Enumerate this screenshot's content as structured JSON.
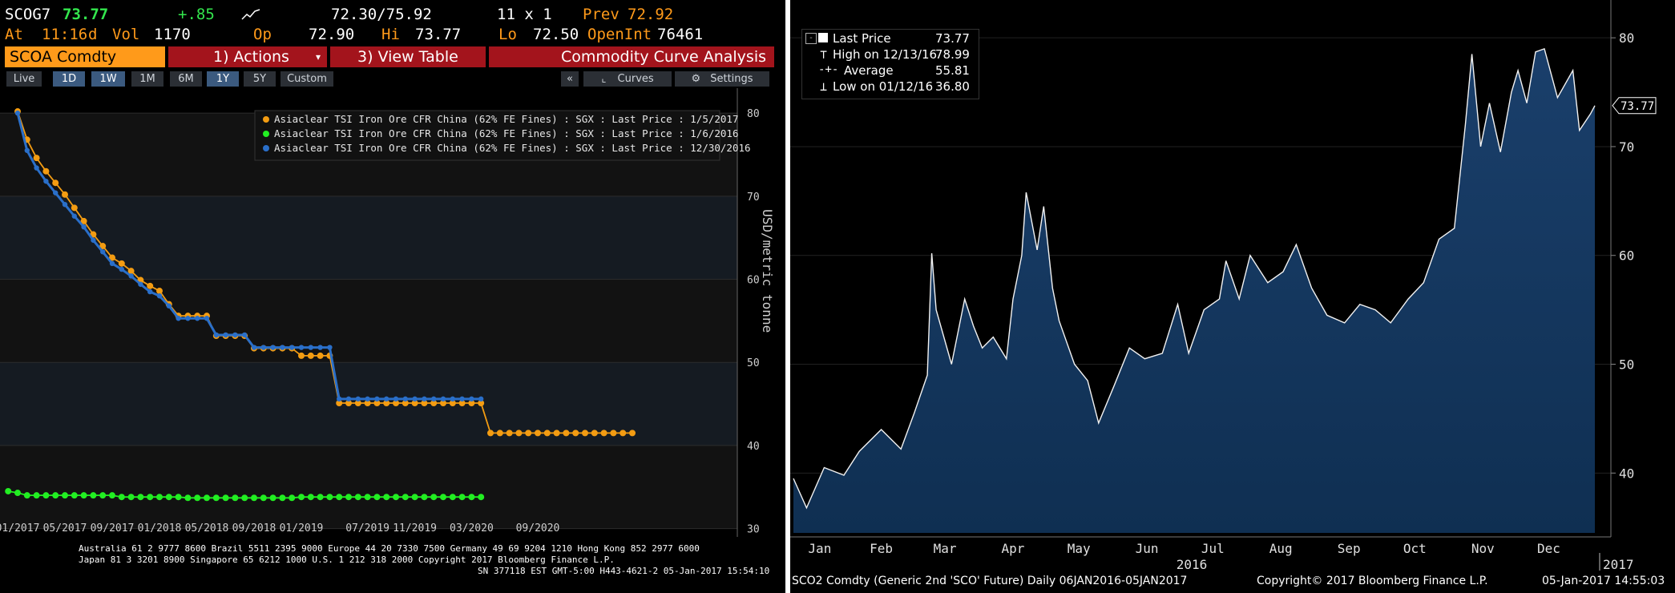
{
  "left": {
    "ticker": "SCOG7",
    "last": "73.77",
    "change": "+.85",
    "range": "72.30/75.92",
    "size": "11 x 1",
    "prev_label": "Prev",
    "prev": "72.92",
    "at_label": "At",
    "time": "11:16",
    "day_flag": "d",
    "vol_label": "Vol",
    "vol": "1170",
    "op_label": "Op",
    "op": "72.90",
    "hi_label": "Hi",
    "hi": "73.77",
    "lo_label": "Lo",
    "lo": "72.50",
    "oi_label": "OpenInt",
    "oi": "76461",
    "security": "SCOA Comdty",
    "actions": "1) Actions",
    "view_table": "3) View Table",
    "analysis_title": "Commodity Curve Analysis",
    "periods": [
      "Live",
      "1D",
      "1W",
      "1M",
      "6M",
      "1Y",
      "5Y",
      "Custom"
    ],
    "collapse": "«",
    "curves": "Curves",
    "settings": "Settings",
    "footer": [
      "Australia 61 2 9777 8600 Brazil 5511 2395 9000 Europe 44 20 7330 7500 Germany 49 69 9204 1210 Hong Kong 852 2977 6000",
      "Japan 81 3 3201 8900          Singapore 65 6212 1000          U.S. 1 212 318 2000          Copyright 2017 Bloomberg Finance L.P.",
      "SN 377118 EST  GMT-5:00 H443-4621-2 05-Jan-2017 15:54:10"
    ]
  },
  "right": {
    "footer_left": "SCO2 Comdty (Generic 2nd 'SCO' Future)  Daily 06JAN2016-05JAN2017",
    "footer_mid": "Copyright© 2017 Bloomberg Finance L.P.",
    "footer_right": "05-Jan-2017 14:55:03"
  },
  "chart_data": [
    {
      "type": "line",
      "ylabel": "USD/metric tonne",
      "ylim": [
        29,
        83
      ],
      "yticks": [
        30,
        40,
        50,
        60,
        70,
        80
      ],
      "x_labels": [
        "01/2017",
        "05/2017",
        "09/2017",
        "01/2018",
        "05/2018",
        "09/2018",
        "01/2019",
        "07/2019",
        "11/2019",
        "03/2020",
        "09/2020"
      ],
      "legend_position": "top-right",
      "colors": {
        "curve_20170105": "#f39c12",
        "curve_20160106": "#22ee22",
        "curve_20161230": "#2a6fc9"
      },
      "series": [
        {
          "name": "Asiaclear TSI Iron Ore CFR China (62% FE Fines) : SGX : Last Price : 1/5/2017",
          "key": "curve_20170105",
          "points": [
            [
              0,
              80.2
            ],
            [
              1,
              76.8
            ],
            [
              2,
              74.6
            ],
            [
              3,
              73.0
            ],
            [
              4,
              71.6
            ],
            [
              5,
              70.2
            ],
            [
              6,
              68.6
            ],
            [
              7,
              67.0
            ],
            [
              8,
              65.4
            ],
            [
              9,
              64.0
            ],
            [
              10,
              62.6
            ],
            [
              11,
              61.9
            ],
            [
              12,
              61.0
            ],
            [
              13,
              59.9
            ],
            [
              14,
              59.2
            ],
            [
              15,
              58.6
            ],
            [
              16,
              57.0
            ],
            [
              17,
              55.6
            ],
            [
              18,
              55.6
            ],
            [
              19,
              55.6
            ],
            [
              20,
              55.6
            ],
            [
              21,
              53.2
            ],
            [
              22,
              53.2
            ],
            [
              23,
              53.2
            ],
            [
              24,
              53.2
            ],
            [
              25,
              51.7
            ],
            [
              26,
              51.7
            ],
            [
              27,
              51.7
            ],
            [
              28,
              51.7
            ],
            [
              29,
              51.7
            ],
            [
              30,
              50.8
            ],
            [
              31,
              50.8
            ],
            [
              32,
              50.8
            ],
            [
              33,
              50.8
            ],
            [
              34,
              45.1
            ],
            [
              35,
              45.1
            ],
            [
              36,
              45.1
            ],
            [
              37,
              45.1
            ],
            [
              38,
              45.1
            ],
            [
              39,
              45.1
            ],
            [
              40,
              45.1
            ],
            [
              41,
              45.1
            ],
            [
              42,
              45.1
            ],
            [
              43,
              45.1
            ],
            [
              44,
              45.1
            ],
            [
              45,
              45.1
            ],
            [
              46,
              45.1
            ],
            [
              47,
              45.1
            ],
            [
              48,
              45.1
            ],
            [
              49,
              45.1
            ],
            [
              50,
              41.5
            ],
            [
              51,
              41.5
            ],
            [
              52,
              41.5
            ],
            [
              53,
              41.5
            ],
            [
              54,
              41.5
            ],
            [
              55,
              41.5
            ],
            [
              56,
              41.5
            ],
            [
              57,
              41.5
            ],
            [
              58,
              41.5
            ],
            [
              59,
              41.5
            ],
            [
              60,
              41.5
            ],
            [
              61,
              41.5
            ],
            [
              62,
              41.5
            ],
            [
              63,
              41.5
            ],
            [
              64,
              41.5
            ],
            [
              65,
              41.5
            ]
          ]
        },
        {
          "name": "Asiaclear TSI Iron Ore CFR China (62% FE Fines) : SGX : Last Price : 1/6/2016",
          "key": "curve_20160106",
          "points": [
            [
              -1,
              34.5
            ],
            [
              0,
              34.3
            ],
            [
              1,
              34.0
            ],
            [
              2,
              34.0
            ],
            [
              3,
              34.0
            ],
            [
              4,
              34.0
            ],
            [
              5,
              34.0
            ],
            [
              6,
              34.0
            ],
            [
              7,
              34.0
            ],
            [
              8,
              34.0
            ],
            [
              9,
              34.0
            ],
            [
              10,
              34.0
            ],
            [
              11,
              33.8
            ],
            [
              12,
              33.8
            ],
            [
              13,
              33.8
            ],
            [
              14,
              33.8
            ],
            [
              15,
              33.8
            ],
            [
              16,
              33.8
            ],
            [
              17,
              33.8
            ],
            [
              18,
              33.7
            ],
            [
              19,
              33.7
            ],
            [
              20,
              33.7
            ],
            [
              21,
              33.7
            ],
            [
              22,
              33.7
            ],
            [
              23,
              33.7
            ],
            [
              24,
              33.7
            ],
            [
              25,
              33.7
            ],
            [
              26,
              33.7
            ],
            [
              27,
              33.7
            ],
            [
              28,
              33.7
            ],
            [
              29,
              33.7
            ],
            [
              30,
              33.8
            ],
            [
              31,
              33.8
            ],
            [
              32,
              33.8
            ],
            [
              33,
              33.8
            ],
            [
              34,
              33.8
            ],
            [
              35,
              33.8
            ],
            [
              36,
              33.8
            ],
            [
              37,
              33.8
            ],
            [
              38,
              33.8
            ],
            [
              39,
              33.8
            ],
            [
              40,
              33.8
            ],
            [
              41,
              33.8
            ],
            [
              42,
              33.8
            ],
            [
              43,
              33.8
            ],
            [
              44,
              33.8
            ],
            [
              45,
              33.8
            ],
            [
              46,
              33.8
            ],
            [
              47,
              33.8
            ],
            [
              48,
              33.8
            ],
            [
              49,
              33.8
            ]
          ]
        },
        {
          "name": "Asiaclear TSI Iron Ore CFR China (62% FE Fines) : SGX : Last Price : 12/30/2016",
          "key": "curve_20161230",
          "points": [
            [
              0,
              80.0
            ],
            [
              1,
              75.5
            ],
            [
              2,
              73.4
            ],
            [
              3,
              71.8
            ],
            [
              4,
              70.4
            ],
            [
              5,
              69.0
            ],
            [
              6,
              67.6
            ],
            [
              7,
              66.3
            ],
            [
              8,
              64.7
            ],
            [
              9,
              63.3
            ],
            [
              10,
              61.9
            ],
            [
              11,
              61.2
            ],
            [
              12,
              60.4
            ],
            [
              13,
              59.4
            ],
            [
              14,
              58.5
            ],
            [
              15,
              58.0
            ],
            [
              16,
              56.8
            ],
            [
              17,
              55.3
            ],
            [
              18,
              55.3
            ],
            [
              19,
              55.3
            ],
            [
              20,
              55.3
            ],
            [
              21,
              53.3
            ],
            [
              22,
              53.3
            ],
            [
              23,
              53.3
            ],
            [
              24,
              53.3
            ],
            [
              25,
              51.8
            ],
            [
              26,
              51.8
            ],
            [
              27,
              51.8
            ],
            [
              28,
              51.8
            ],
            [
              29,
              51.8
            ],
            [
              30,
              51.8
            ],
            [
              31,
              51.8
            ],
            [
              32,
              51.8
            ],
            [
              33,
              51.8
            ],
            [
              34,
              45.6
            ],
            [
              35,
              45.6
            ],
            [
              36,
              45.6
            ],
            [
              37,
              45.6
            ],
            [
              38,
              45.6
            ],
            [
              39,
              45.6
            ],
            [
              40,
              45.6
            ],
            [
              41,
              45.6
            ],
            [
              42,
              45.6
            ],
            [
              43,
              45.6
            ],
            [
              44,
              45.6
            ],
            [
              45,
              45.6
            ],
            [
              46,
              45.6
            ],
            [
              47,
              45.6
            ],
            [
              48,
              45.6
            ],
            [
              49,
              45.6
            ]
          ]
        }
      ]
    },
    {
      "type": "area",
      "ylim": [
        34.5,
        82
      ],
      "yticks": [
        40,
        50,
        60,
        70,
        80
      ],
      "x_labels": [
        "Jan",
        "Feb",
        "Mar",
        "Apr",
        "May",
        "Jun",
        "Jul",
        "Aug",
        "Sep",
        "Oct",
        "Nov",
        "Dec"
      ],
      "x_year_labels": [
        "2016",
        "2017"
      ],
      "current_value_label": "73.77",
      "color": "#0f2f52",
      "stats": {
        "last_label": "Last Price",
        "last": "73.77",
        "high_label": "High on 12/13/16",
        "high": "78.99",
        "avg_label": "Average",
        "avg": "55.81",
        "low_label": "Low on 01/12/16",
        "low": "36.80"
      },
      "points": [
        [
          "2016-01-06",
          39.5
        ],
        [
          "2016-01-12",
          36.8
        ],
        [
          "2016-01-20",
          40.5
        ],
        [
          "2016-01-29",
          39.8
        ],
        [
          "2016-02-05",
          42.0
        ],
        [
          "2016-02-15",
          44.0
        ],
        [
          "2016-02-24",
          42.2
        ],
        [
          "2016-03-01",
          45.5
        ],
        [
          "2016-03-07",
          49.0
        ],
        [
          "2016-03-09",
          60.2
        ],
        [
          "2016-03-11",
          55.0
        ],
        [
          "2016-03-18",
          50.0
        ],
        [
          "2016-03-24",
          56.0
        ],
        [
          "2016-03-28",
          53.5
        ],
        [
          "2016-04-01",
          51.5
        ],
        [
          "2016-04-06",
          52.5
        ],
        [
          "2016-04-12",
          50.5
        ],
        [
          "2016-04-15",
          56.0
        ],
        [
          "2016-04-19",
          60.0
        ],
        [
          "2016-04-21",
          65.8
        ],
        [
          "2016-04-26",
          60.5
        ],
        [
          "2016-04-29",
          64.5
        ],
        [
          "2016-05-03",
          57.0
        ],
        [
          "2016-05-06",
          54.0
        ],
        [
          "2016-05-13",
          50.0
        ],
        [
          "2016-05-19",
          48.5
        ],
        [
          "2016-05-24",
          44.6
        ],
        [
          "2016-05-31",
          48.0
        ],
        [
          "2016-06-07",
          51.5
        ],
        [
          "2016-06-14",
          50.5
        ],
        [
          "2016-06-22",
          51.0
        ],
        [
          "2016-06-29",
          55.5
        ],
        [
          "2016-07-04",
          51.0
        ],
        [
          "2016-07-11",
          55.0
        ],
        [
          "2016-07-18",
          56.0
        ],
        [
          "2016-07-21",
          59.5
        ],
        [
          "2016-07-27",
          56.0
        ],
        [
          "2016-08-01",
          60.0
        ],
        [
          "2016-08-09",
          57.5
        ],
        [
          "2016-08-16",
          58.5
        ],
        [
          "2016-08-22",
          61.0
        ],
        [
          "2016-08-29",
          57.0
        ],
        [
          "2016-09-05",
          54.5
        ],
        [
          "2016-09-13",
          53.8
        ],
        [
          "2016-09-20",
          55.5
        ],
        [
          "2016-09-27",
          55.0
        ],
        [
          "2016-10-04",
          53.8
        ],
        [
          "2016-10-12",
          56.0
        ],
        [
          "2016-10-19",
          57.5
        ],
        [
          "2016-10-26",
          61.5
        ],
        [
          "2016-11-02",
          62.5
        ],
        [
          "2016-11-07",
          72.0
        ],
        [
          "2016-11-10",
          78.5
        ],
        [
          "2016-11-14",
          70.0
        ],
        [
          "2016-11-18",
          74.0
        ],
        [
          "2016-11-23",
          69.5
        ],
        [
          "2016-11-28",
          75.0
        ],
        [
          "2016-12-01",
          77.0
        ],
        [
          "2016-12-05",
          74.0
        ],
        [
          "2016-12-09",
          78.7
        ],
        [
          "2016-12-13",
          78.99
        ],
        [
          "2016-12-19",
          74.5
        ],
        [
          "2016-12-26",
          77.0
        ],
        [
          "2016-12-29",
          71.5
        ],
        [
          "2017-01-03",
          73.0
        ],
        [
          "2017-01-05",
          73.77
        ]
      ]
    }
  ]
}
